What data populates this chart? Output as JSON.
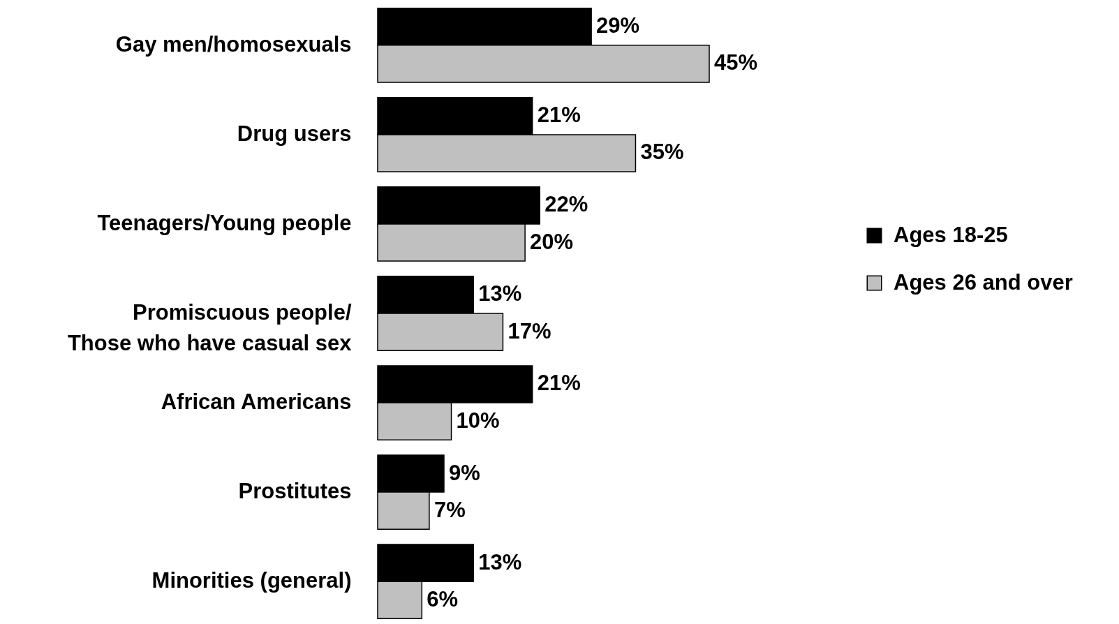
{
  "chart_data": {
    "type": "bar",
    "orientation": "horizontal",
    "categories": [
      "Gay men/homosexuals",
      "Drug users",
      "Teenagers/Young people",
      "Promiscuous people/\nThose who have casual sex",
      "African Americans",
      "Prostitutes",
      "Minorities (general)"
    ],
    "series": [
      {
        "name": "Ages 18-25",
        "color": "#000000",
        "values": [
          29,
          21,
          22,
          13,
          21,
          9,
          13
        ],
        "value_labels": [
          "29%",
          "21%",
          "22%",
          "13%",
          "21%",
          "9%",
          "13%"
        ]
      },
      {
        "name": "Ages 26 and over",
        "color": "#c0c0c0",
        "values": [
          45,
          35,
          20,
          17,
          10,
          7,
          6
        ],
        "value_labels": [
          "45%",
          "35%",
          "20%",
          "17%",
          "10%",
          "7%",
          "6%"
        ]
      }
    ],
    "legend": "right",
    "tick_labels": "y"
  }
}
